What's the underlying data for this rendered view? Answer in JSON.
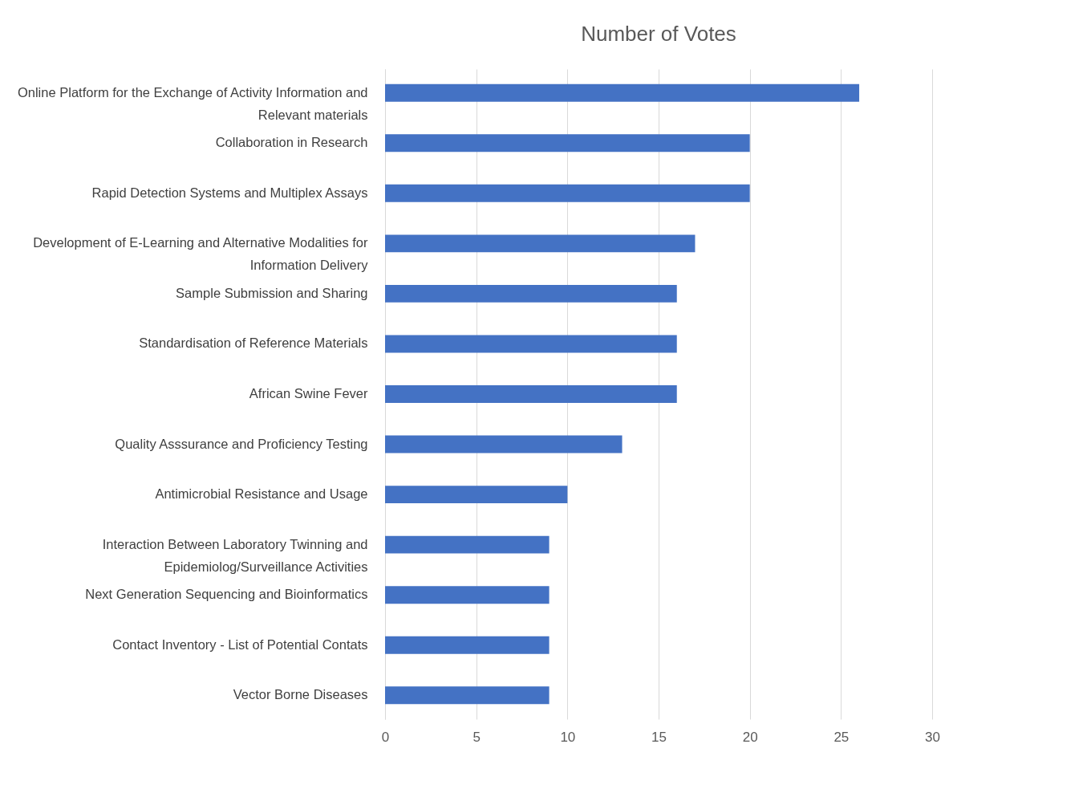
{
  "chart_data": {
    "type": "bar",
    "orientation": "horizontal",
    "title": "Number of Votes",
    "categories": [
      "Online Platform for the Exchange of Activity Information and Relevant materials",
      "Collaboration in Research",
      "Rapid Detection Systems and Multiplex Assays",
      "Development of E-Learning and Alternative Modalities for Information Delivery",
      "Sample Submission and Sharing",
      "Standardisation of Reference Materials",
      "African Swine Fever",
      "Quality Asssurance and Proficiency Testing",
      "Antimicrobial Resistance and Usage",
      "Interaction Between Laboratory Twinning and Epidemiolog/Surveillance Activities",
      "Next Generation Sequencing and Bioinformatics",
      "Contact Inventory - List of Potential Contats",
      "Vector Borne Diseases"
    ],
    "values": [
      26,
      20,
      20,
      17,
      16,
      16,
      16,
      13,
      10,
      9,
      9,
      9,
      9
    ],
    "color": "#4472c4",
    "xlim": [
      0,
      30
    ],
    "xticks": [
      0,
      5,
      10,
      15,
      20,
      25,
      30
    ],
    "grid": "x"
  }
}
